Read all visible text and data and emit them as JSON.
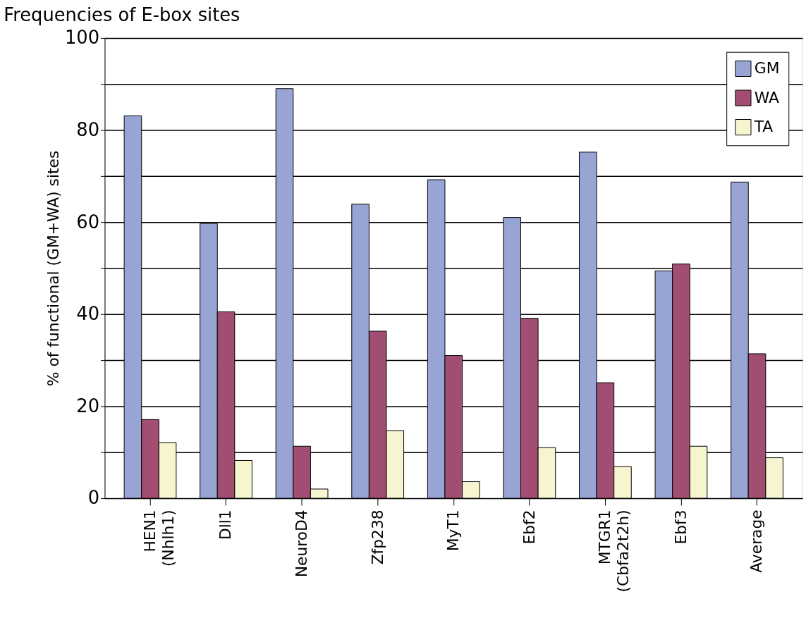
{
  "chart_data": {
    "type": "bar",
    "title": "Frequencies of E-box sites",
    "ylabel": "% of functional (GM+WA) sites",
    "categories": [
      "HEN1 (Nhlh1)",
      "Dll1",
      "NeuroD4",
      "Zfp238",
      "MyT1",
      "Ebf2",
      "MTGR1 (Cbfa2t2h)",
      "Ebf3",
      "Average"
    ],
    "series": [
      {
        "name": "GM",
        "color": "#98a4d4",
        "values": [
          83.1,
          59.7,
          89.0,
          63.9,
          69.2,
          61.0,
          75.2,
          49.4,
          68.7
        ]
      },
      {
        "name": "WA",
        "color": "#a24e73",
        "values": [
          17.1,
          40.5,
          11.3,
          36.3,
          31.0,
          39.1,
          25.1,
          50.9,
          31.4
        ]
      },
      {
        "name": "TA",
        "color": "#f7f5cf",
        "values": [
          12.1,
          8.2,
          2.0,
          14.7,
          3.6,
          11.0,
          6.9,
          11.3,
          8.8
        ]
      }
    ],
    "ylim": [
      0,
      100
    ],
    "yticks": [
      0,
      {
        "value": 10,
        "label": null
      },
      20,
      {
        "value": 30,
        "label": null
      },
      40,
      {
        "value": 50,
        "label": null
      },
      60,
      {
        "value": 70,
        "label": null
      },
      80,
      {
        "value": 90,
        "label": null
      },
      100
    ],
    "grid": "y",
    "legend": "top right"
  }
}
